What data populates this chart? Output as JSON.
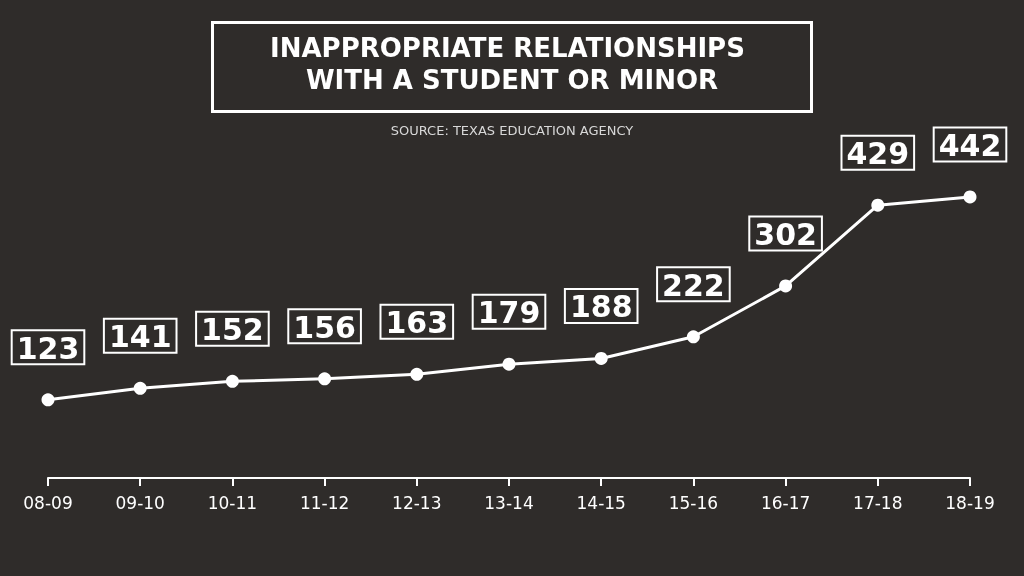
{
  "chart_data": {
    "type": "line",
    "title": "INAPPROPRIATE RELATIONSHIPS WITH A STUDENT OR MINOR",
    "annotations": [
      "SOURCE: TEXAS EDUCATION AGENCY"
    ],
    "categories": [
      "08-09",
      "09-10",
      "10-11",
      "11-12",
      "12-13",
      "13-14",
      "14-15",
      "15-16",
      "16-17",
      "17-18",
      "18-19"
    ],
    "series": [
      {
        "color": "#ffffff",
        "values": [
          123,
          141,
          152,
          156,
          163,
          179,
          188,
          222,
          302,
          429,
          442
        ]
      }
    ],
    "data_labels": true,
    "marker": "circle",
    "line_style": "solid",
    "grid": false,
    "tick_labels": "x"
  }
}
